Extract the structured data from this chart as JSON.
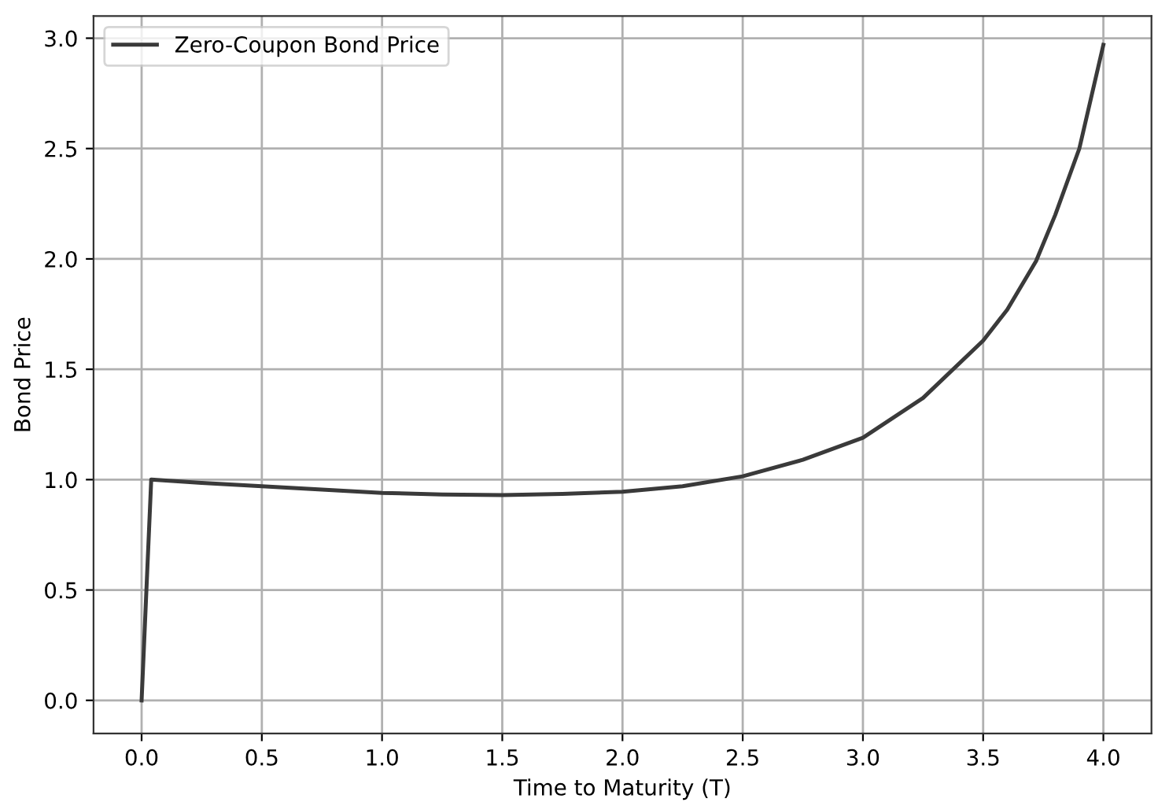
{
  "chart_data": {
    "type": "line",
    "xlabel": "Time to Maturity (T)",
    "ylabel": "Bond Price",
    "series": [
      {
        "name": "Zero-Coupon Bond Price",
        "color": "#3a3a3a",
        "x": [
          0,
          0.04,
          0.25,
          0.5,
          0.75,
          1.0,
          1.25,
          1.5,
          1.75,
          2.0,
          2.25,
          2.5,
          2.75,
          3.0,
          3.25,
          3.5,
          3.6,
          3.72,
          3.8,
          3.9,
          4.0
        ],
        "values": [
          0,
          1.0,
          0.985,
          0.97,
          0.955,
          0.94,
          0.933,
          0.93,
          0.935,
          0.945,
          0.97,
          1.015,
          1.09,
          1.19,
          1.37,
          1.63,
          1.77,
          1.99,
          2.2,
          2.5,
          2.97
        ]
      }
    ],
    "xlim": [
      -0.2,
      4.2
    ],
    "ylim": [
      -0.15,
      3.1
    ],
    "xticks": [
      {
        "value": 0,
        "label": "0.0"
      },
      0.5,
      {
        "value": 1,
        "label": "1.0"
      },
      1.5,
      {
        "value": 2,
        "label": "2.0"
      },
      2.5,
      {
        "value": 3,
        "label": "3.0"
      },
      3.5,
      {
        "value": 4,
        "label": "4.0"
      }
    ],
    "yticks": [
      {
        "value": 0,
        "label": "0.0"
      },
      0.5,
      {
        "value": 1,
        "label": "1.0"
      },
      1.5,
      {
        "value": 2,
        "label": "2.0"
      },
      2.5,
      {
        "value": 3,
        "label": "3.0"
      }
    ],
    "grid": true,
    "legend": "top left",
    "line_style": "solid"
  }
}
